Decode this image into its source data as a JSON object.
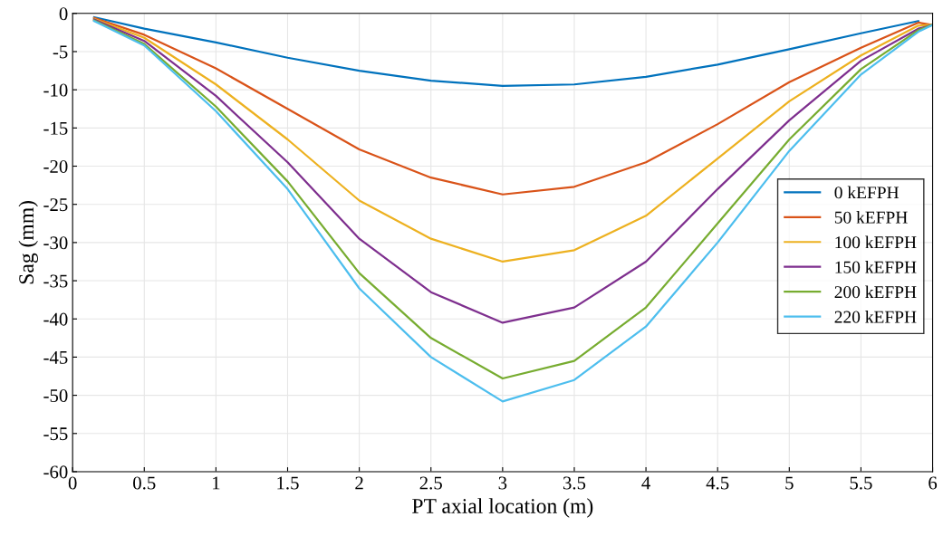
{
  "chart_data": {
    "type": "line",
    "xlabel": "PT axial location (m)",
    "ylabel": "Sag (mm)",
    "x": [
      0.15,
      0.5,
      1,
      1.5,
      2,
      2.5,
      3,
      3.5,
      4,
      4.5,
      5,
      5.5,
      5.9,
      6
    ],
    "series": [
      {
        "name": "0 kEFPH",
        "color": "#0072bd",
        "x": [
          0.15,
          0.5,
          1,
          1.5,
          2,
          2.5,
          3,
          3.5,
          4,
          4.5,
          5,
          5.5,
          5.9
        ],
        "values": [
          -0.5,
          -2,
          -3.8,
          -5.8,
          -7.5,
          -8.8,
          -9.5,
          -9.3,
          -8.3,
          -6.7,
          -4.7,
          -2.6,
          -1.0
        ]
      },
      {
        "name": "50 kEFPH",
        "color": "#d95319",
        "values": [
          -0.6,
          -2.8,
          -7.2,
          -12.5,
          -17.8,
          -21.5,
          -23.7,
          -22.7,
          -19.5,
          -14.5,
          -9,
          -4.5,
          -1.2,
          -1.5
        ]
      },
      {
        "name": "100 kEFPH",
        "color": "#edb120",
        "values": [
          -0.7,
          -3.2,
          -9.3,
          -16.5,
          -24.5,
          -29.5,
          -32.5,
          -31,
          -26.5,
          -19,
          -11.5,
          -5.5,
          -1.6,
          -1.5
        ]
      },
      {
        "name": "150 kEFPH",
        "color": "#7e2f8e",
        "values": [
          -0.8,
          -3.6,
          -10.8,
          -19.5,
          -29.5,
          -36.5,
          -40.5,
          -38.5,
          -32.5,
          -23,
          -14,
          -6.2,
          -2,
          -1.5
        ]
      },
      {
        "name": "200 kEFPH",
        "color": "#77ac30",
        "values": [
          -0.9,
          -4,
          -12.2,
          -22,
          -34,
          -42.5,
          -47.8,
          -45.5,
          -38.5,
          -27.5,
          -16.5,
          -7.3,
          -2.2,
          -1.5
        ]
      },
      {
        "name": "220 kEFPH",
        "color": "#4dbeee",
        "values": [
          -1,
          -4.2,
          -12.8,
          -23,
          -36,
          -45,
          -50.8,
          -48,
          -41,
          -30,
          -18,
          -8,
          -2.4,
          -1.5
        ]
      }
    ],
    "xlim": [
      0,
      6
    ],
    "xticks": [
      0,
      0.5,
      1,
      1.5,
      2,
      2.5,
      3,
      3.5,
      4,
      4.5,
      5,
      5.5,
      6
    ],
    "ylim": [
      -60,
      0
    ],
    "yticks": [
      -60,
      -55,
      -50,
      -45,
      -40,
      -35,
      -30,
      -25,
      -20,
      -15,
      -10,
      -5,
      0
    ],
    "grid": true,
    "legend": "right",
    "line_style": "solid",
    "marker": "none"
  }
}
